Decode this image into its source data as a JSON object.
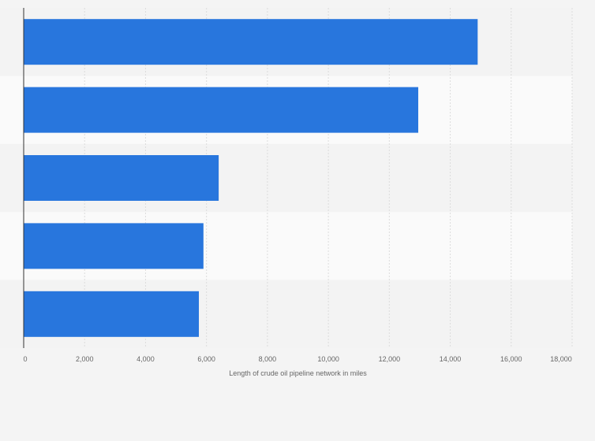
{
  "chart_data": {
    "type": "bar",
    "orientation": "horizontal",
    "categories": [
      "",
      "",
      "",
      "",
      ""
    ],
    "values": [
      14900,
      12950,
      6400,
      5900,
      5750
    ],
    "xlabel": "Length of crude oil pipeline network in miles",
    "ylabel": "",
    "xlim": [
      0,
      18000
    ],
    "ticks": [
      {
        "value": 0,
        "label": "0"
      },
      {
        "value": 2000,
        "label": "2,000"
      },
      {
        "value": 4000,
        "label": "4,000"
      },
      {
        "value": 6000,
        "label": "6,000"
      },
      {
        "value": 8000,
        "label": "8,000"
      },
      {
        "value": 10000,
        "label": "10,000"
      },
      {
        "value": 12000,
        "label": "12,000"
      },
      {
        "value": 14000,
        "label": "14,000"
      },
      {
        "value": 16000,
        "label": "16,000"
      },
      {
        "value": 18000,
        "label": "18,000"
      }
    ],
    "grid": true,
    "colors": {
      "bar": "#2876dd",
      "band_light": "#fafafa",
      "band_dark": "#f3f3f3",
      "grid": "#dcdcdc",
      "axis": "#333333"
    }
  }
}
